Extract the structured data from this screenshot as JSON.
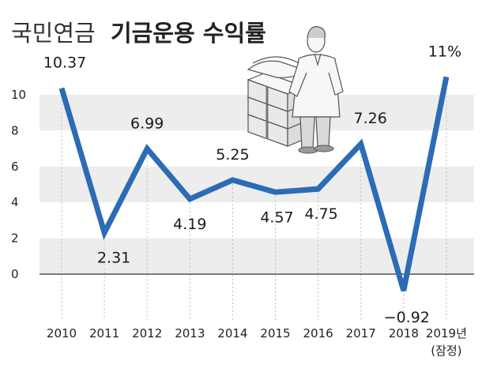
{
  "chart_data": {
    "type": "line",
    "title_light": "국민연금",
    "title_bold": "기금운용 수익률",
    "categories": [
      "2010",
      "2011",
      "2012",
      "2013",
      "2014",
      "2015",
      "2016",
      "2017",
      "2018",
      "2019년"
    ],
    "category_note": "(잠정)",
    "values": [
      10.37,
      2.31,
      6.99,
      4.19,
      5.25,
      4.57,
      4.75,
      7.26,
      -0.92,
      11
    ],
    "value_labels": [
      "10.37",
      "2.31",
      "6.99",
      "4.19",
      "5.25",
      "4.57",
      "4.75",
      "7.26",
      "−0.92",
      "11%"
    ],
    "yticks": [
      "0",
      "2",
      "4",
      "6",
      "8",
      "10"
    ],
    "ylim": [
      -1.2,
      12
    ],
    "grid": "alternating-bands",
    "colors": {
      "line": "#2b6cb5",
      "band": "#ededed",
      "axis": "#333333",
      "guide": "#bbbbbb"
    },
    "illustration": "businessman-with-money-stacks-icon"
  }
}
